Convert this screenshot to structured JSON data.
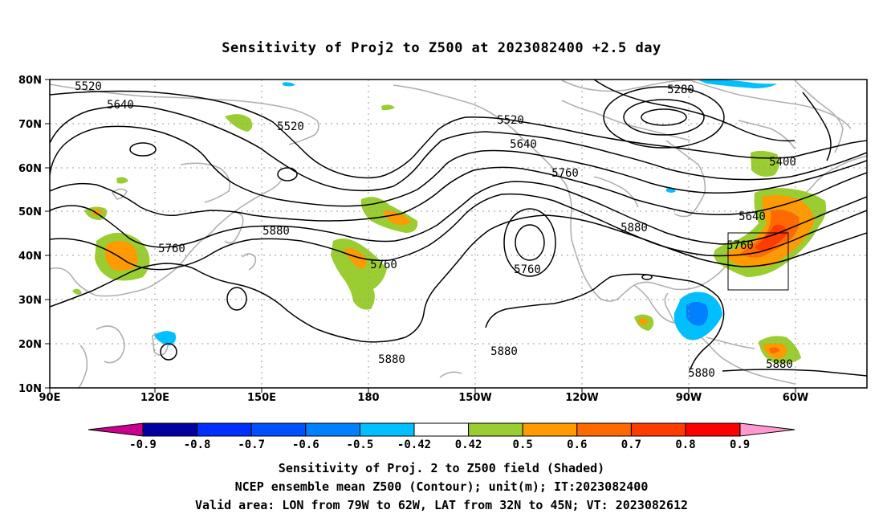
{
  "title": "Sensitivity of Proj2 to Z500 at 2023082400 +2.5 day",
  "captions": [
    "Sensitivity of Proj. 2 to Z500 field (Shaded)",
    "NCEP ensemble mean Z500 (Contour); unit(m); IT:2023082400",
    "Valid area: LON from 79W to 62W, LAT from 32N to 45N; VT: 2023082612"
  ],
  "axes": {
    "lon_ticks": [
      "90E",
      "120E",
      "150E",
      "180",
      "150W",
      "120W",
      "90W",
      "60W"
    ],
    "lat_ticks": [
      "80N",
      "70N",
      "60N",
      "50N",
      "40N",
      "30N",
      "20N",
      "10N"
    ]
  },
  "colorbar": {
    "labels": [
      "-0.9",
      "-0.8",
      "-0.7",
      "-0.6",
      "-0.5",
      "-0.42",
      "0.42",
      "0.5",
      "0.6",
      "0.7",
      "0.8",
      "0.9"
    ],
    "colors": [
      "#0000a0",
      "#0030ff",
      "#0050ff",
      "#0080ff",
      "#00bfff",
      "#ffffff",
      "#9acd32",
      "#ff9a00",
      "#ff6a00",
      "#ff3c00",
      "#ff0000"
    ],
    "left_tip_color": "#c8008c",
    "right_tip_color": "#ff9ad0"
  },
  "contour_labels": [
    "5520",
    "5640",
    "5520",
    "5880",
    "5760",
    "5760",
    "5520",
    "5640",
    "5760",
    "5280",
    "5400",
    "5760",
    "5880",
    "5640",
    "5760",
    "5880",
    "5880",
    "5880",
    "5880"
  ],
  "valid_area": {
    "lon_west": "79W",
    "lon_east": "62W",
    "lat_south": "32N",
    "lat_north": "45N"
  }
}
